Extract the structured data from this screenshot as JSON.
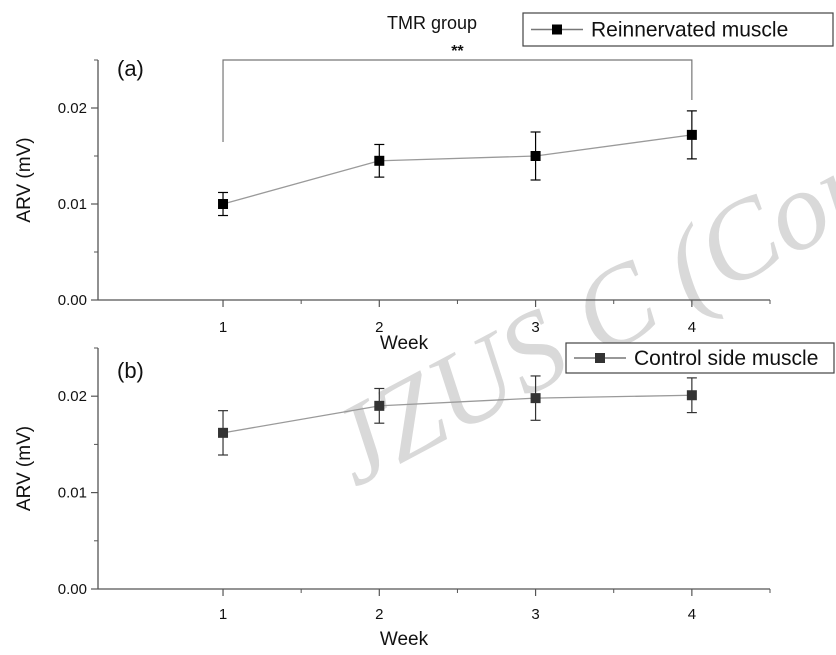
{
  "figure_title": "TMR group",
  "significance_marker": "**",
  "watermark": "JZUS C (Com",
  "chart_data": [
    {
      "type": "line",
      "panel_label": "(a)",
      "xlabel": "Week",
      "ylabel": "ARV (mV)",
      "x": [
        1,
        2,
        3,
        4
      ],
      "xticks": [
        "1",
        "2",
        "3",
        "4"
      ],
      "yticks": [
        "0.00",
        "0.01",
        "0.02"
      ],
      "xlim": [
        0.2,
        4.5
      ],
      "ylim": [
        0,
        0.025
      ],
      "grid": false,
      "legend_position": "top-right",
      "significance": {
        "from": 1,
        "to": 4,
        "label": "**"
      },
      "series": [
        {
          "name": "Reinnervated muscle",
          "color": "#000000",
          "values": [
            0.01,
            0.0145,
            0.015,
            0.0172
          ],
          "errors": [
            0.0012,
            0.0017,
            0.0025,
            0.0025
          ]
        }
      ]
    },
    {
      "type": "line",
      "panel_label": "(b)",
      "xlabel": "Week",
      "ylabel": "ARV (mV)",
      "x": [
        1,
        2,
        3,
        4
      ],
      "xticks": [
        "1",
        "2",
        "3",
        "4"
      ],
      "yticks": [
        "0.00",
        "0.01",
        "0.02"
      ],
      "xlim": [
        0.2,
        4.5
      ],
      "ylim": [
        0,
        0.025
      ],
      "grid": false,
      "legend_position": "top-right",
      "series": [
        {
          "name": "Control side muscle",
          "color": "#333333",
          "values": [
            0.0162,
            0.019,
            0.0198,
            0.0201
          ],
          "errors": [
            0.0023,
            0.0018,
            0.0023,
            0.0018
          ]
        }
      ]
    }
  ]
}
